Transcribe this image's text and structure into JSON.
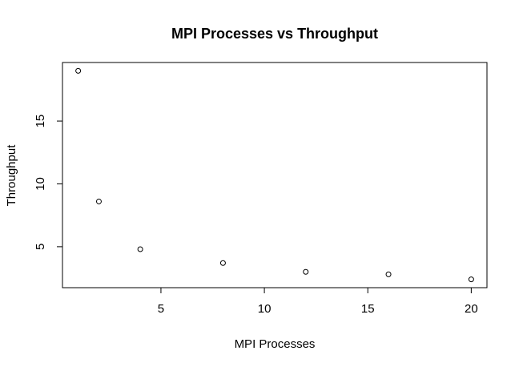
{
  "chart_data": {
    "type": "scatter",
    "title": "MPI Processes vs Throughput",
    "xlabel": "MPI Processes",
    "ylabel": "Throughput",
    "x": [
      1,
      2,
      4,
      8,
      12,
      16,
      20
    ],
    "y": [
      19.0,
      8.6,
      4.8,
      3.7,
      3.0,
      2.8,
      2.4
    ],
    "xlim": [
      0.24,
      20.76
    ],
    "ylim": [
      1.74,
      19.66
    ],
    "x_ticks": [
      5,
      10,
      15,
      20
    ],
    "y_ticks": [
      5,
      10,
      15
    ],
    "x_tick_labels": [
      "5",
      "10",
      "15",
      "20"
    ],
    "y_tick_labels": [
      "5",
      "10",
      "15"
    ],
    "grid": false,
    "legend": "none",
    "marker": "open-circle",
    "colors": {
      "point": "#000000",
      "axis": "#000000",
      "background": "#ffffff"
    }
  }
}
